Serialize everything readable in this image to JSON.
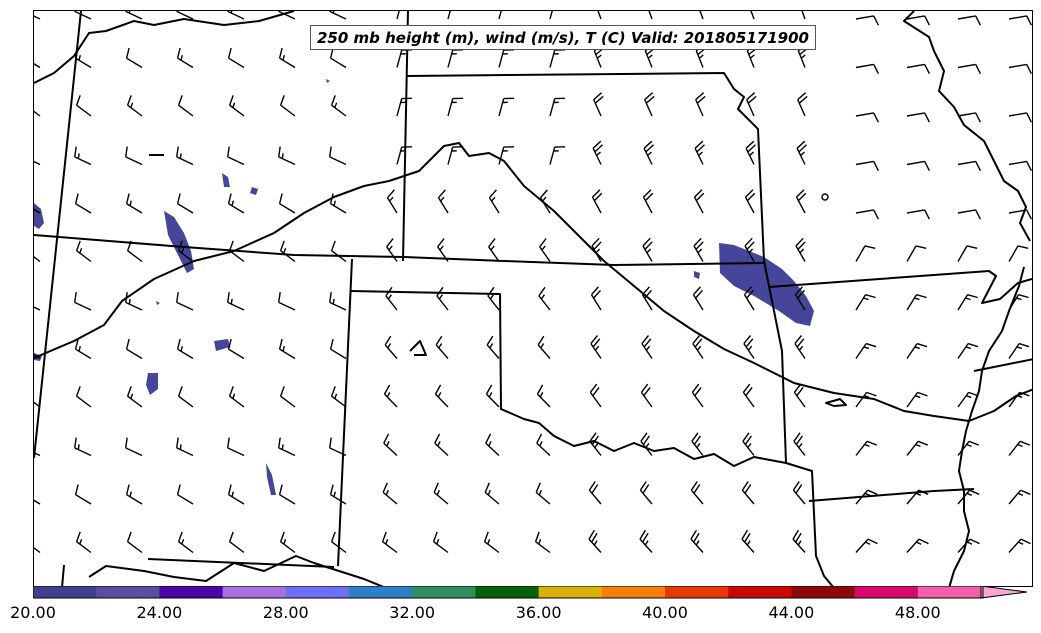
{
  "title": "250 mb height (m), wind (m/s), T (C) Valid: 201805171900",
  "colorbar": {
    "colors": [
      "#3f3f8f",
      "#5a4f9e",
      "#4b08a8",
      "#a86fe0",
      "#6f6ff5",
      "#2f7fc8",
      "#2f8f5f",
      "#086008",
      "#d8b008",
      "#f57f08",
      "#e83808",
      "#c80808",
      "#8f0808",
      "#d8086f",
      "#f55fa8",
      "#f5a8d0"
    ],
    "tick_labels": [
      "20.00",
      "24.00",
      "28.00",
      "32.00",
      "36.00",
      "40.00",
      "44.00",
      "48.00"
    ],
    "range": [
      20,
      52
    ]
  },
  "map_features": {
    "state_borders": "black",
    "wind_barbs": "black",
    "shading": "#45459a"
  }
}
